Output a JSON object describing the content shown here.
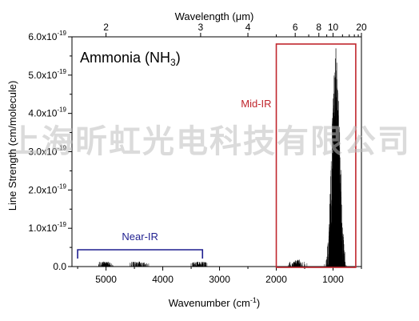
{
  "chart_data": {
    "type": "line",
    "title": "Ammonia (NH3)",
    "title_parts": {
      "main": "Ammonia (NH",
      "sub": "3",
      "end": ")"
    },
    "xlabel": "Wavenumber (cm-1)",
    "xlabel_parts": {
      "main": "Wavenumber (cm",
      "sup": "-1",
      "end": ")"
    },
    "ylabel": "Line Strength (cm/molecule)",
    "x2label": "Wavelength (μm)",
    "x2label_parts": {
      "main": "Wavelength (",
      "mu": "μ",
      "end": "m)"
    },
    "xlim": [
      5600,
      500
    ],
    "x_reversed": true,
    "ylim": [
      0,
      6e-19
    ],
    "x_ticks": [
      {
        "value": 5000,
        "label": "5000"
      },
      {
        "value": 4000,
        "label": "4000"
      },
      {
        "value": 3000,
        "label": "3000"
      },
      {
        "value": 2000,
        "label": "2000"
      },
      {
        "value": 1000,
        "label": "1000"
      }
    ],
    "y_ticks": [
      {
        "value": 0.0,
        "mantissa": "0.0",
        "exp": ""
      },
      {
        "value": 1e-19,
        "mantissa": "1.0x10",
        "exp": "-19"
      },
      {
        "value": 2e-19,
        "mantissa": "2.0x10",
        "exp": "-19"
      },
      {
        "value": 3e-19,
        "mantissa": "3.0x10",
        "exp": "-19"
      },
      {
        "value": 4e-19,
        "mantissa": "4.0x10",
        "exp": "-19"
      },
      {
        "value": 5e-19,
        "mantissa": "5.0x10",
        "exp": "-19"
      },
      {
        "value": 6e-19,
        "mantissa": "6.0x10",
        "exp": "-19"
      }
    ],
    "top_ticks": [
      {
        "value": 2,
        "label": "2"
      },
      {
        "value": 3,
        "label": "3"
      },
      {
        "value": 4,
        "label": "4"
      },
      {
        "value": 6,
        "label": "6"
      },
      {
        "value": 8,
        "label": "8"
      },
      {
        "value": 10,
        "label": "10"
      },
      {
        "value": 20,
        "label": "20"
      }
    ],
    "bands": [
      {
        "center": 5000,
        "width": 150,
        "peak": 1e-21
      },
      {
        "center": 4420,
        "width": 200,
        "peak": 8e-22
      },
      {
        "center": 3350,
        "width": 200,
        "peak": 1.2e-21
      },
      {
        "center": 1627,
        "width": 200,
        "peak": 7e-21
      },
      {
        "center": 950,
        "width": 220,
        "peak": 5.7e-19
      }
    ],
    "annotations": [
      {
        "text": "Near-IR",
        "x_range": [
          5500,
          3300
        ],
        "color": "#1f1f8f"
      },
      {
        "text": "Mid-IR",
        "x_range": [
          2000,
          600
        ],
        "color": "#c0262d"
      }
    ]
  },
  "watermark": "上海昕虹光电科技有限公司",
  "colors": {
    "near_ir": "#1f1f8f",
    "mid_ir": "#c0262d",
    "spectrum": "#000000"
  }
}
